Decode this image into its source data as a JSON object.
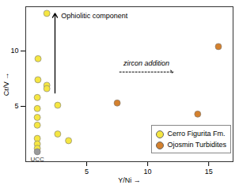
{
  "chart_data": {
    "type": "scatter",
    "x_label": "Y/Ni",
    "y_label": "Cr/V",
    "xlim": [
      0,
      17
    ],
    "ylim": [
      0,
      14
    ],
    "xticks": [
      5,
      10,
      15
    ],
    "yticks": [
      5,
      10
    ],
    "legend": "bottom-right",
    "series": [
      {
        "name": "Cerro Figurita Fm.",
        "color": "#f5e642",
        "marker": "circle",
        "x": [
          1.73,
          1.01,
          1.0,
          1.73,
          1.73,
          0.95,
          2.62,
          0.95,
          0.95,
          0.95,
          2.62,
          0.95,
          0.95,
          3.51,
          0.95
        ],
        "values": [
          13.4,
          9.3,
          7.4,
          6.9,
          6.6,
          5.8,
          5.1,
          4.8,
          4.0,
          3.3,
          2.5,
          2.1,
          1.6,
          1.9,
          1.2
        ]
      },
      {
        "name": "Ojosmin Turbidites",
        "color": "#d4812e",
        "marker": "circle",
        "x": [
          7.5,
          14.1,
          15.8
        ],
        "values": [
          5.3,
          4.3,
          10.4
        ]
      }
    ],
    "points": [
      {
        "label": "UCC",
        "x": 0.95,
        "y": 0.9,
        "color": "#9a9a9a"
      }
    ],
    "annotations": [
      "Ophiolitic component",
      "zircon addition"
    ]
  }
}
